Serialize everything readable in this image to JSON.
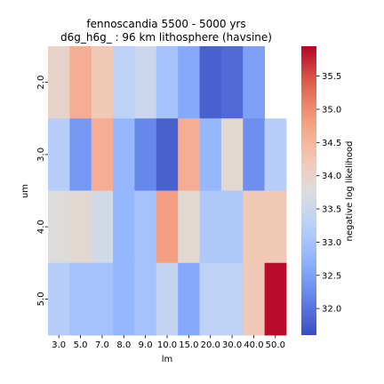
{
  "chart_data": {
    "type": "heatmap",
    "title": "fennoscandia 5500 - 5000 yrs",
    "subtitle": "d6g_h6g_ : 96 km lithosphere (havsine)",
    "xlabel": "lm",
    "ylabel": "um",
    "x_categories": [
      "3.0",
      "5.0",
      "7.0",
      "8.0",
      "9.0",
      "10.0",
      "15.0",
      "20.0",
      "30.0",
      "40.0",
      "50.0"
    ],
    "y_categories": [
      "2.0",
      "3.0",
      "4.0",
      "5.0"
    ],
    "values": [
      [
        34.0,
        34.6,
        34.2,
        33.3,
        33.5,
        33.0,
        32.6,
        31.8,
        31.9,
        32.5,
        null
      ],
      [
        33.2,
        32.4,
        34.6,
        32.8,
        32.2,
        31.8,
        34.6,
        32.8,
        33.9,
        32.3,
        33.2
      ],
      [
        33.8,
        33.9,
        33.6,
        32.8,
        33.0,
        34.8,
        33.9,
        33.1,
        33.1,
        34.2,
        34.2
      ],
      [
        33.2,
        33.0,
        33.0,
        32.8,
        33.0,
        33.4,
        32.6,
        33.3,
        33.3,
        34.2,
        35.9
      ]
    ],
    "colorbar": {
      "label": "negative log likelihood",
      "vmin": 31.6,
      "vmax": 35.95,
      "ticks": [
        "32.0",
        "32.5",
        "33.0",
        "33.5",
        "34.0",
        "34.5",
        "35.0",
        "35.5"
      ],
      "colormap": "coolwarm"
    },
    "grid": false
  }
}
